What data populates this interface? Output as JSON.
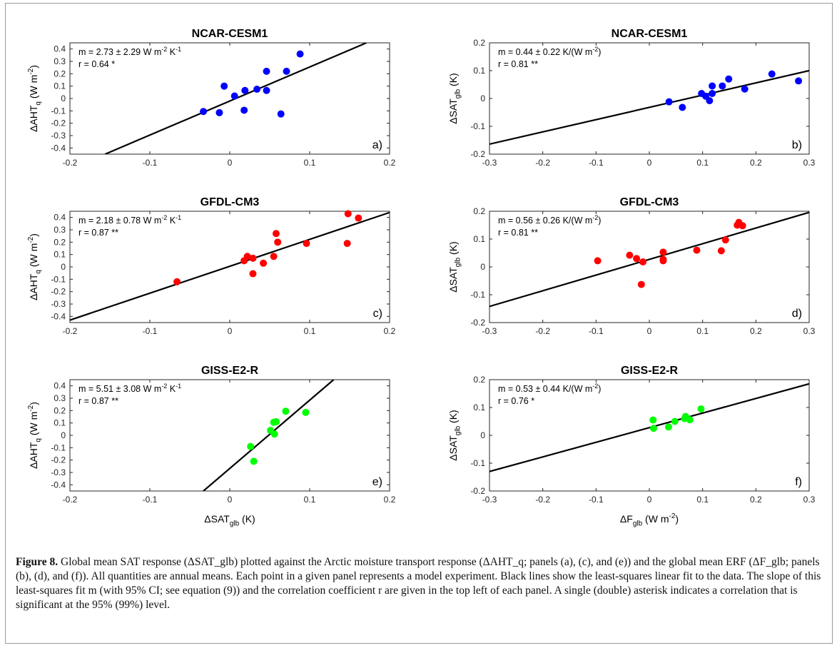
{
  "caption": {
    "figure_label": "Figure 8.",
    "text": "Global mean SAT response (ΔSAT_glb) plotted against the Arctic moisture transport response (ΔAHT_q; panels (a), (c), and (e)) and the global mean ERF (ΔF_glb; panels (b), (d), and (f)). All quantities are annual means. Each point in a given panel represents a model experiment. Black lines show the least-squares linear fit to the data. The slope of this least-squares fit m (with 95% CI; see equation (9)) and the correlation coefficient r are given in the top left of each panel. A single (double) asterisk indicates a correlation that is significant at the 95% (99%) level."
  },
  "chart_data": [
    {
      "panel": "a)",
      "type": "scatter",
      "title": "NCAR-CESM1",
      "xlabel": "",
      "ylabel": "ΔAHT_q (W m^-2)",
      "xlim": [
        -0.2,
        0.2
      ],
      "ylim": [
        -0.45,
        0.45
      ],
      "xticks": [
        "-0.2",
        "-0.1",
        "0",
        "0.1",
        "0.2"
      ],
      "yticks": [
        "-0.4",
        "-0.3",
        "-0.2",
        "-0.1",
        "0",
        "0.1",
        "0.2",
        "0.3",
        "0.4"
      ],
      "annotation_m": "m = 2.73 ± 2.29 W m^-2 K^-1",
      "annotation_r": "r = 0.64 *",
      "point_color": "#0000ff",
      "x": [
        -0.033,
        -0.013,
        -0.007,
        0.006,
        0.019,
        0.018,
        0.034,
        0.046,
        0.046,
        0.064,
        0.071,
        0.088
      ],
      "y": [
        -0.105,
        -0.115,
        0.1,
        0.02,
        0.065,
        -0.095,
        0.075,
        0.22,
        0.065,
        -0.125,
        0.22,
        0.36
      ],
      "fit_line": {
        "x": [
          -0.156,
          0.171
        ],
        "y": [
          -0.45,
          0.45
        ]
      }
    },
    {
      "panel": "b)",
      "type": "scatter",
      "title": "NCAR-CESM1",
      "xlabel": "",
      "ylabel": "ΔSAT_glb (K)",
      "xlim": [
        -0.3,
        0.3
      ],
      "ylim": [
        -0.2,
        0.2
      ],
      "xticks": [
        "-0.3",
        "-0.2",
        "-0.1",
        "0",
        "0.1",
        "0.2",
        "0.3"
      ],
      "yticks": [
        "-0.2",
        "-0.1",
        "0",
        "0.1",
        "0.2"
      ],
      "annotation_m": "m = 0.44 ± 0.22 K/(W m^-2)",
      "annotation_r": "r = 0.81 **",
      "point_color": "#0000ff",
      "x": [
        0.037,
        0.062,
        0.098,
        0.106,
        0.113,
        0.118,
        0.118,
        0.137,
        0.149,
        0.179,
        0.23,
        0.28
      ],
      "y": [
        -0.012,
        -0.032,
        0.018,
        0.008,
        -0.008,
        0.045,
        0.018,
        0.045,
        0.07,
        0.034,
        0.088,
        0.063
      ],
      "fit_line": {
        "x": [
          -0.3,
          0.3
        ],
        "y": [
          -0.164,
          0.1
        ]
      }
    },
    {
      "panel": "c)",
      "type": "scatter",
      "title": "GFDL-CM3",
      "xlabel": "",
      "ylabel": "ΔAHT_q (W m^-2)",
      "xlim": [
        -0.2,
        0.2
      ],
      "ylim": [
        -0.45,
        0.45
      ],
      "xticks": [
        "-0.2",
        "-0.1",
        "0",
        "0.1",
        "0.2"
      ],
      "yticks": [
        "-0.4",
        "-0.3",
        "-0.2",
        "-0.1",
        "0",
        "0.1",
        "0.2",
        "0.3",
        "0.4"
      ],
      "annotation_m": "m = 2.18 ± 0.78 W m^-2 K^-1",
      "annotation_r": "r = 0.87 **",
      "point_color": "#ff0000",
      "x": [
        -0.066,
        0.018,
        0.022,
        0.029,
        0.029,
        0.042,
        0.055,
        0.058,
        0.06,
        0.096,
        0.148,
        0.147,
        0.161
      ],
      "y": [
        -0.12,
        0.05,
        0.085,
        0.07,
        -0.055,
        0.03,
        0.085,
        0.27,
        0.2,
        0.19,
        0.43,
        0.19,
        0.395
      ],
      "fit_line": {
        "x": [
          -0.2,
          0.2
        ],
        "y": [
          -0.43,
          0.44
        ]
      }
    },
    {
      "panel": "d)",
      "type": "scatter",
      "title": "GFDL-CM3",
      "xlabel": "",
      "ylabel": "ΔSAT_glb (K)",
      "xlim": [
        -0.3,
        0.3
      ],
      "ylim": [
        -0.2,
        0.2
      ],
      "xticks": [
        "-0.3",
        "-0.2",
        "-0.1",
        "0",
        "0.1",
        "0.2",
        "0.3"
      ],
      "yticks": [
        "-0.2",
        "-0.1",
        "0",
        "0.1",
        "0.2"
      ],
      "annotation_m": "m = 0.56 ± 0.26 K/(W m^-2)",
      "annotation_r": "r = 0.81 **",
      "point_color": "#ff0000",
      "x": [
        -0.097,
        -0.037,
        -0.024,
        -0.012,
        -0.015,
        0.026,
        0.026,
        0.026,
        0.089,
        0.135,
        0.143,
        0.165,
        0.168,
        0.175
      ],
      "y": [
        0.022,
        0.042,
        0.03,
        0.018,
        -0.063,
        0.053,
        0.027,
        0.022,
        0.06,
        0.058,
        0.097,
        0.15,
        0.16,
        0.148
      ],
      "fit_line": {
        "x": [
          -0.3,
          0.3
        ],
        "y": [
          -0.142,
          0.196
        ]
      }
    },
    {
      "panel": "e)",
      "type": "scatter",
      "title": "GISS-E2-R",
      "xlabel": "ΔSAT_glb (K)",
      "ylabel": "ΔAHT_q (W m^-2)",
      "xlim": [
        -0.2,
        0.2
      ],
      "ylim": [
        -0.45,
        0.45
      ],
      "xticks": [
        "-0.2",
        "-0.1",
        "0",
        "0.1",
        "0.2"
      ],
      "yticks": [
        "-0.4",
        "-0.3",
        "-0.2",
        "-0.1",
        "0",
        "0.1",
        "0.2",
        "0.3",
        "0.4"
      ],
      "annotation_m": "m = 5.51 ± 3.08 W m^-2 K^-1",
      "annotation_r": "r = 0.87 **",
      "point_color": "#00ff00",
      "x": [
        0.026,
        0.03,
        0.051,
        0.055,
        0.056,
        0.058,
        0.07,
        0.095
      ],
      "y": [
        -0.09,
        -0.21,
        0.04,
        0.105,
        0.01,
        0.11,
        0.195,
        0.185
      ],
      "fit_line": {
        "x": [
          -0.033,
          0.13
        ],
        "y": [
          -0.45,
          0.45
        ]
      }
    },
    {
      "panel": "f)",
      "type": "scatter",
      "title": "GISS-E2-R",
      "xlabel": "ΔF_glb (W m^-2)",
      "ylabel": "ΔSAT_glb (K)",
      "xlim": [
        -0.3,
        0.3
      ],
      "ylim": [
        -0.2,
        0.2
      ],
      "xticks": [
        "-0.3",
        "-0.2",
        "-0.1",
        "0",
        "0.1",
        "0.2",
        "0.3"
      ],
      "yticks": [
        "-0.2",
        "-0.1",
        "0",
        "0.1",
        "0.2"
      ],
      "annotation_m": "m = 0.53 ± 0.44 K/(W m^-2)",
      "annotation_r": "r = 0.76 *",
      "point_color": "#00ff00",
      "x": [
        0.007,
        0.008,
        0.036,
        0.048,
        0.066,
        0.068,
        0.076,
        0.097
      ],
      "y": [
        0.055,
        0.025,
        0.03,
        0.05,
        0.06,
        0.068,
        0.056,
        0.095
      ],
      "fit_line": {
        "x": [
          -0.3,
          0.3
        ],
        "y": [
          -0.13,
          0.185
        ]
      }
    }
  ]
}
